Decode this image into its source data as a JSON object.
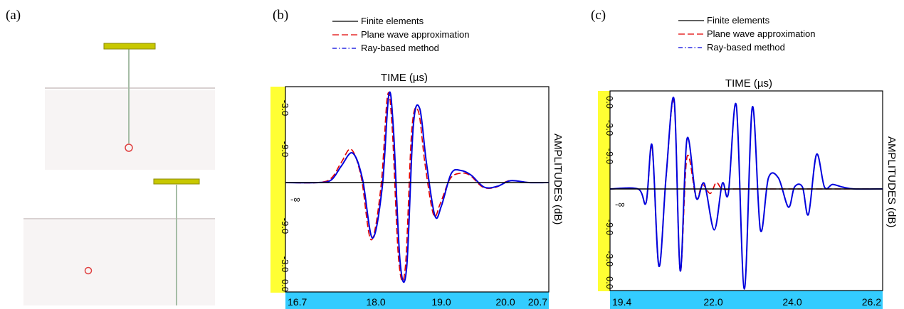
{
  "panels": {
    "a": {
      "label": "(a)"
    },
    "b": {
      "label": "(b)"
    },
    "c": {
      "label": "(c)"
    }
  },
  "colors": {
    "finite_elements": "#000000",
    "plane_wave": "#e00000",
    "ray_based": "#0000dd",
    "y_axis_band": "#ffff33",
    "x_axis_band": "#33ccff",
    "probe_bar": "#c8c800",
    "probe_rod": "#a6bda6",
    "interface_line": "#d8d0d0",
    "defect": "#e04040"
  },
  "chart_data": [
    {
      "type": "line",
      "panel": "b",
      "title": "TIME (µs)",
      "ylabel": "AMPLITUDES (dB)",
      "xlim": [
        16.7,
        20.7
      ],
      "x_ticks": [
        "16.7",
        "18.0",
        "19.0",
        "20.0",
        "20.7"
      ],
      "y_ticks_upper": [
        "-3.0",
        "-9.0"
      ],
      "y_ticks_lower": [
        "-9.0",
        "-3.0",
        "0.0"
      ],
      "baseline_label": "-∞",
      "legend": [
        "Finite elements",
        "Plane wave approximation",
        "Ray-based method"
      ],
      "series": [
        {
          "name": "Finite elements",
          "x": [
            16.7,
            20.7
          ],
          "y": [
            0,
            0
          ]
        },
        {
          "name": "Plane wave approximation",
          "x": [
            16.7,
            17.2,
            17.4,
            17.55,
            17.7,
            17.85,
            18.0,
            18.15,
            18.25,
            18.32,
            18.42,
            18.52,
            18.62,
            18.72,
            18.82,
            18.95,
            19.05,
            19.2,
            19.35,
            19.5,
            19.7,
            19.9,
            20.1,
            20.4,
            20.7
          ],
          "y": [
            0,
            0,
            0.05,
            0.22,
            0.36,
            0.06,
            -0.62,
            -0.05,
            0.94,
            0.6,
            -0.84,
            -0.92,
            0.58,
            0.77,
            0.2,
            -0.35,
            -0.23,
            0.04,
            0.1,
            0.08,
            -0.05,
            -0.05,
            0.02,
            0.0,
            0
          ]
        },
        {
          "name": "Ray-based method",
          "x": [
            16.7,
            17.2,
            17.4,
            17.55,
            17.72,
            17.87,
            18.02,
            18.17,
            18.27,
            18.34,
            18.44,
            18.54,
            18.64,
            18.74,
            18.84,
            18.97,
            19.07,
            19.22,
            19.37,
            19.52,
            19.72,
            19.92,
            20.12,
            20.4,
            20.7
          ],
          "y": [
            0,
            0,
            0.03,
            0.18,
            0.32,
            0.04,
            -0.6,
            -0.05,
            0.95,
            0.58,
            -0.85,
            -0.93,
            0.6,
            0.8,
            0.22,
            -0.36,
            -0.25,
            0.1,
            0.13,
            0.08,
            -0.05,
            -0.04,
            0.02,
            0.0,
            0
          ]
        }
      ]
    },
    {
      "type": "line",
      "panel": "c",
      "title": "TIME (µs)",
      "ylabel": "AMPLITUDES (dB)",
      "xlim": [
        19.4,
        26.2
      ],
      "x_ticks": [
        "19.4",
        "22.0",
        "24.0",
        "26.2"
      ],
      "y_ticks_upper": [
        "0.0",
        "-3.0",
        "-9.0"
      ],
      "y_ticks_lower": [
        "-9.0",
        "-3.0",
        "0.0"
      ],
      "baseline_label": "-∞",
      "legend": [
        "Finite elements",
        "Plane wave approximation",
        "Ray-based method"
      ],
      "series": [
        {
          "name": "Finite elements",
          "x": [
            19.4,
            26.2
          ],
          "y": [
            0,
            0
          ]
        },
        {
          "name": "Plane wave approximation",
          "x": [
            19.4,
            20.1,
            20.3,
            20.45,
            20.62,
            20.8,
            21.0,
            21.15,
            21.32,
            21.55,
            21.7,
            21.9,
            22.05,
            22.2,
            22.5,
            22.7,
            23.0,
            23.5,
            24.0,
            24.5,
            25.0,
            25.5,
            26.2
          ],
          "y": [
            0,
            0,
            -0.15,
            0.45,
            -0.85,
            0.15,
            0.95,
            -0.9,
            0.35,
            -0.1,
            0.05,
            -0.05,
            0.07,
            0,
            0,
            0,
            0,
            0,
            0,
            0,
            0,
            0,
            0
          ]
        },
        {
          "name": "Ray-based method",
          "x": [
            19.4,
            20.1,
            20.3,
            20.45,
            20.62,
            20.8,
            21.0,
            21.15,
            21.32,
            21.55,
            21.75,
            22.0,
            22.2,
            22.35,
            22.55,
            22.75,
            22.95,
            23.15,
            23.35,
            23.6,
            23.85,
            24.0,
            24.2,
            24.35,
            24.55,
            24.75,
            24.95,
            25.2,
            25.5,
            26.2
          ],
          "y": [
            0,
            0,
            -0.15,
            0.48,
            -0.85,
            0.15,
            0.98,
            -0.9,
            0.55,
            -0.1,
            0.06,
            -0.45,
            0.06,
            -0.05,
            0.92,
            -1.1,
            0.9,
            -0.45,
            0.12,
            0.12,
            -0.2,
            0.02,
            0.02,
            -0.28,
            0.38,
            0.02,
            0.05,
            0.02,
            0,
            0
          ]
        }
      ]
    }
  ]
}
